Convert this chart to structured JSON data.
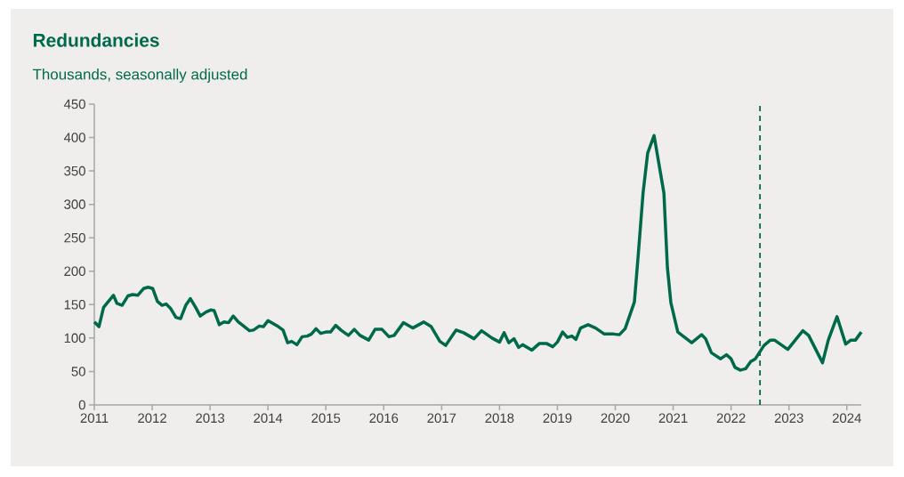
{
  "chart_data": {
    "type": "line",
    "title": "Redundancies",
    "subtitle": "Thousands, seasonally adjusted",
    "x": [
      2011.0,
      2011.08,
      2011.16,
      2011.33,
      2011.39,
      2011.48,
      2011.58,
      2011.66,
      2011.75,
      2011.85,
      2011.93,
      2012.01,
      2012.09,
      2012.17,
      2012.24,
      2012.32,
      2012.41,
      2012.49,
      2012.58,
      2012.66,
      2012.75,
      2012.83,
      2012.93,
      2013.01,
      2013.07,
      2013.16,
      2013.24,
      2013.32,
      2013.4,
      2013.49,
      2013.58,
      2013.68,
      2013.75,
      2013.85,
      2013.92,
      2014.0,
      2014.1,
      2014.18,
      2014.26,
      2014.34,
      2014.41,
      2014.5,
      2014.59,
      2014.68,
      2014.75,
      2014.83,
      2014.91,
      2015.0,
      2015.08,
      2015.17,
      2015.26,
      2015.34,
      2015.39,
      2015.49,
      2015.59,
      2015.74,
      2015.85,
      2015.97,
      2016.09,
      2016.18,
      2016.34,
      2016.5,
      2016.69,
      2016.82,
      2016.97,
      2017.07,
      2017.25,
      2017.38,
      2017.56,
      2017.69,
      2017.87,
      2018.0,
      2018.08,
      2018.16,
      2018.25,
      2018.33,
      2018.4,
      2018.56,
      2018.69,
      2018.81,
      2018.92,
      2019.0,
      2019.09,
      2019.17,
      2019.25,
      2019.32,
      2019.4,
      2019.53,
      2019.66,
      2019.81,
      2019.97,
      2020.07,
      2020.17,
      2020.33,
      2020.4,
      2020.48,
      2020.56,
      2020.67,
      2020.84,
      2020.9,
      2020.96,
      2021.08,
      2021.32,
      2021.49,
      2021.56,
      2021.66,
      2021.82,
      2021.92,
      2022.0,
      2022.07,
      2022.16,
      2022.25,
      2022.34,
      2022.42,
      2022.57,
      2022.68,
      2022.75,
      2022.98,
      2023.24,
      2023.34,
      2023.58,
      2023.68,
      2023.83,
      2023.98,
      2024.07,
      2024.15,
      2024.25
    ],
    "series": [
      {
        "color": "#00694a",
        "values": [
          124,
          117,
          146,
          164,
          152,
          149,
          163,
          165,
          164,
          174,
          176,
          174,
          155,
          149,
          151,
          144,
          131,
          129,
          149,
          159,
          146,
          133,
          139,
          142,
          141,
          120,
          124,
          123,
          133,
          124,
          118,
          111,
          112,
          118,
          117,
          126,
          121,
          117,
          112,
          93,
          95,
          90,
          102,
          103,
          106,
          114,
          107,
          109,
          109,
          119,
          112,
          107,
          104,
          113,
          104,
          97,
          113,
          113,
          102,
          104,
          123,
          115,
          124,
          117,
          95,
          89,
          112,
          108,
          99,
          111,
          100,
          94,
          108,
          93,
          99,
          86,
          90,
          82,
          92,
          92,
          87,
          94,
          109,
          101,
          103,
          98,
          115,
          120,
          115,
          106,
          106,
          105,
          114,
          154,
          228,
          317,
          377,
          403,
          317,
          206,
          153,
          109,
          93,
          105,
          99,
          78,
          69,
          75,
          69,
          56,
          52,
          54,
          65,
          69,
          89,
          97,
          97,
          83,
          111,
          104,
          63,
          97,
          132,
          91,
          97,
          97,
          109
        ]
      }
    ],
    "xlim": [
      2011,
      2024.25
    ],
    "ylim": [
      0,
      450
    ],
    "xticks": [
      2011,
      2012,
      2013,
      2014,
      2015,
      2016,
      2017,
      2018,
      2019,
      2020,
      2021,
      2022,
      2023,
      2024
    ],
    "yticks": [
      0,
      50,
      100,
      150,
      200,
      250,
      300,
      350,
      400,
      450
    ],
    "ref_lines": [
      {
        "axis": "x",
        "value": 2022.5,
        "color": "#00694a",
        "line_style": "dashed"
      }
    ],
    "grid": false,
    "marker": "none",
    "line_style": "solid"
  }
}
